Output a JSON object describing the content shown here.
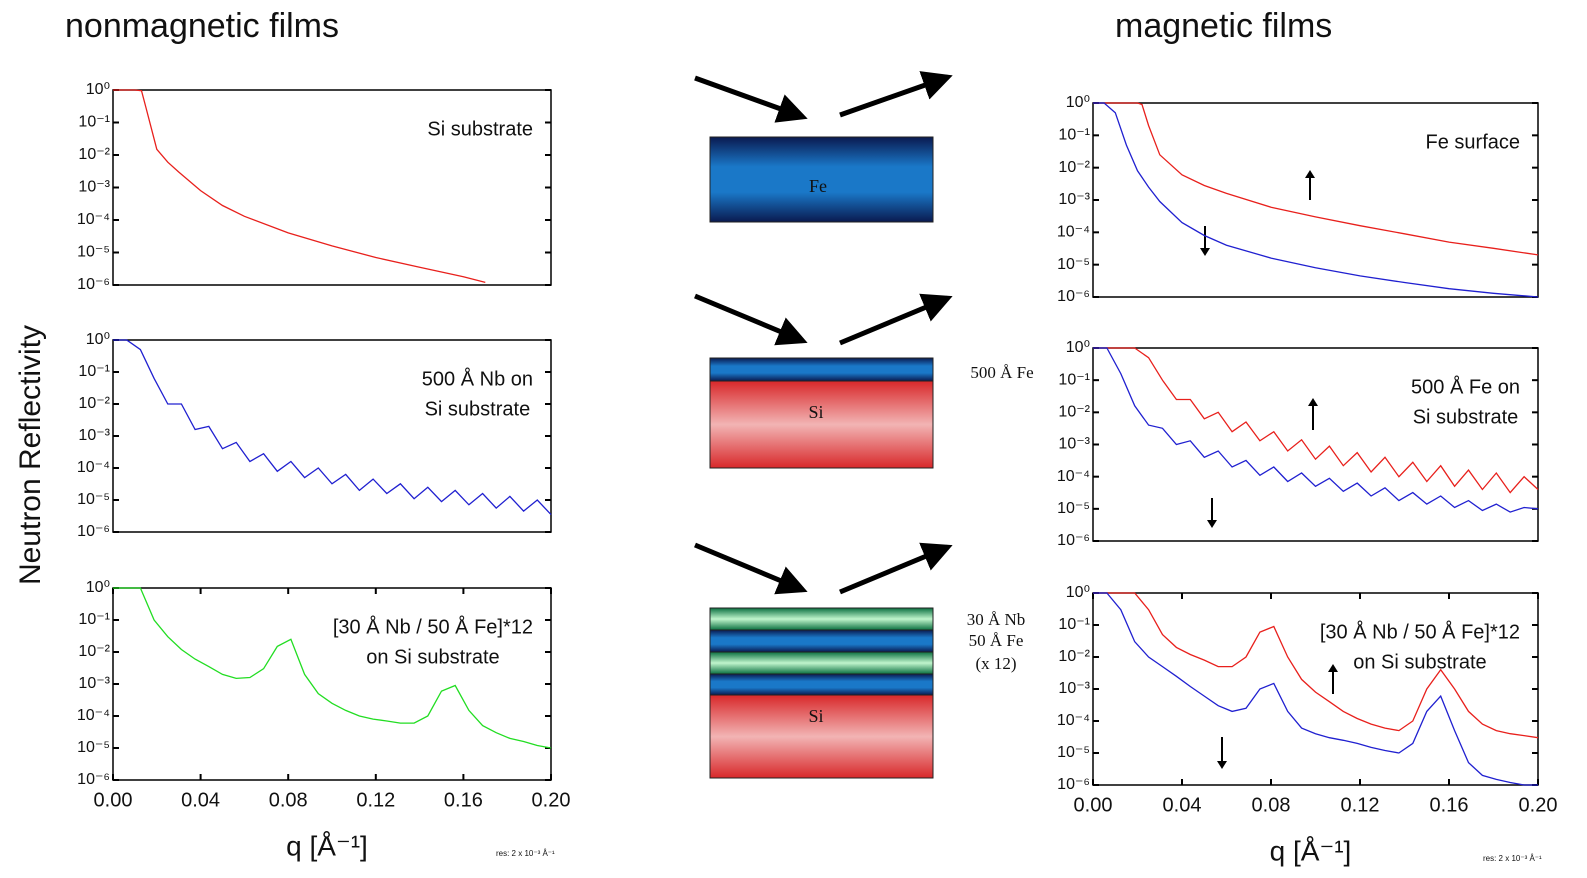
{
  "headings": [
    "nonmagnetic films",
    "magnetic films"
  ],
  "y_axis_label": "Neutron Reflectivity",
  "diagram": {
    "top": "Fe",
    "middle": {
      "film": "500 Å Fe",
      "substrate": "Si"
    },
    "bottom": {
      "film": [
        "30 Å Nb",
        "50 Å Fe",
        "(x 12)"
      ],
      "substrate": "Si"
    }
  },
  "chart_data": [
    {
      "type": "line",
      "log_y": true,
      "annotations": [
        "Si  substrate"
      ],
      "xlim": [
        0,
        0.2
      ],
      "ylim": [
        1e-06,
        1
      ],
      "yticks": [
        {
          "value": 1,
          "label": "10⁰"
        },
        {
          "value": 0.1,
          "label": "10⁻¹"
        },
        {
          "value": 0.01,
          "label": "10⁻²"
        },
        {
          "value": 0.001,
          "label": "10⁻³"
        },
        {
          "value": 0.0001,
          "label": "10⁻⁴"
        },
        {
          "value": 1e-05,
          "label": "10⁻⁵"
        },
        {
          "value": 1e-06,
          "label": "10⁻⁶"
        }
      ],
      "x": [
        0,
        0.005,
        0.01,
        0.013,
        0.015,
        0.02,
        0.025,
        0.03,
        0.04,
        0.05,
        0.06,
        0.08,
        0.1,
        0.12,
        0.14,
        0.16,
        0.17
      ],
      "series": [
        {
          "color": "#e8201c",
          "values": [
            1,
            1,
            1,
            0.95,
            0.3,
            0.015,
            0.006,
            0.003,
            0.0008,
            0.00028,
            0.00013,
            4e-05,
            1.6e-05,
            7e-06,
            3.5e-06,
            1.8e-06,
            1.2e-06
          ]
        }
      ]
    },
    {
      "type": "line",
      "log_y": true,
      "annotations": [
        "500 Å Nb on",
        "Si  substrate"
      ],
      "xlim": [
        0,
        0.2
      ],
      "ylim": [
        1e-06,
        1
      ],
      "yticks": [
        {
          "value": 1,
          "label": "10⁰"
        },
        {
          "value": 0.1,
          "label": "10⁻¹"
        },
        {
          "value": 0.01,
          "label": "10⁻²"
        },
        {
          "value": 0.001,
          "label": "10⁻³"
        },
        {
          "value": 0.0001,
          "label": "10⁻⁴"
        },
        {
          "value": 1e-05,
          "label": "10⁻⁵"
        },
        {
          "value": 1e-06,
          "label": "10⁻⁶"
        }
      ],
      "x": [
        0,
        0.00625,
        0.0125,
        0.01875,
        0.025,
        0.03125,
        0.0375,
        0.04375,
        0.05,
        0.05625,
        0.0625,
        0.06875,
        0.075,
        0.08125,
        0.0875,
        0.09375,
        0.1,
        0.10625,
        0.1125,
        0.11875,
        0.125,
        0.13125,
        0.1375,
        0.14375,
        0.15,
        0.15625,
        0.1625,
        0.16875,
        0.175,
        0.18125,
        0.1875,
        0.19375,
        0.2
      ],
      "series": [
        {
          "color": "#2020d0",
          "values": [
            1,
            1,
            0.5,
            0.063,
            0.01,
            0.01,
            0.0016,
            0.002,
            0.0004,
            0.00063,
            0.00016,
            0.00028,
            7.9e-05,
            0.00016,
            5e-05,
            0.0001,
            3.2e-05,
            6.3e-05,
            2e-05,
            4.5e-05,
            1.6e-05,
            3.2e-05,
            1.1e-05,
            2.5e-05,
            8.9e-06,
            2e-05,
            7.1e-06,
            1.6e-05,
            5.6e-06,
            1.3e-05,
            4.5e-06,
            1e-05,
            3.5e-06
          ]
        }
      ]
    },
    {
      "type": "line",
      "log_y": true,
      "annotations": [
        "[30 Å Nb / 50 Å Fe]*12",
        "on  Si  substrate"
      ],
      "xlabel": "q [Å⁻¹]",
      "note": "res: 2 x 10⁻³ Å⁻¹",
      "xlim": [
        0,
        0.2
      ],
      "ylim": [
        1e-06,
        1
      ],
      "xticks": [
        {
          "value": 0,
          "label": "0.00"
        },
        0.04,
        0.08,
        0.12,
        0.16,
        {
          "value": 0.2,
          "label": "0.20"
        }
      ],
      "yticks": [
        {
          "value": 1,
          "label": "10⁰"
        },
        {
          "value": 0.1,
          "label": "10⁻¹"
        },
        {
          "value": 0.01,
          "label": "10⁻²"
        },
        {
          "value": 0.001,
          "label": "10⁻³"
        },
        {
          "value": 0.0001,
          "label": "10⁻⁴"
        },
        {
          "value": 1e-05,
          "label": "10⁻⁵"
        },
        {
          "value": 1e-06,
          "label": "10⁻⁶"
        }
      ],
      "x": [
        0,
        0.00625,
        0.0125,
        0.01875,
        0.025,
        0.03125,
        0.0375,
        0.04375,
        0.05,
        0.05625,
        0.0625,
        0.06875,
        0.075,
        0.08125,
        0.0875,
        0.09375,
        0.1,
        0.10625,
        0.1125,
        0.11875,
        0.125,
        0.13125,
        0.1375,
        0.14375,
        0.15,
        0.15625,
        0.1625,
        0.16875,
        0.175,
        0.18125,
        0.1875,
        0.19375,
        0.2
      ],
      "series": [
        {
          "color": "#22dd22",
          "values": [
            1,
            1,
            1,
            0.1,
            0.03,
            0.012,
            0.006,
            0.0035,
            0.002,
            0.0015,
            0.0016,
            0.003,
            0.015,
            0.025,
            0.002,
            0.0005,
            0.00025,
            0.00015,
            0.0001,
            8e-05,
            7e-05,
            6e-05,
            6e-05,
            0.0001,
            0.0006,
            0.0009,
            0.00015,
            5e-05,
            3e-05,
            2e-05,
            1.6e-05,
            1.2e-05,
            1e-05
          ]
        }
      ]
    },
    {
      "type": "line",
      "log_y": true,
      "annotations": [
        "Fe surface"
      ],
      "xlim": [
        0,
        0.2
      ],
      "ylim": [
        1e-06,
        1
      ],
      "yticks": [
        {
          "value": 1,
          "label": "10⁰"
        },
        {
          "value": 0.1,
          "label": "10⁻¹"
        },
        {
          "value": 0.01,
          "label": "10⁻²"
        },
        {
          "value": 0.001,
          "label": "10⁻³"
        },
        {
          "value": 0.0001,
          "label": "10⁻⁴"
        },
        {
          "value": 1e-05,
          "label": "10⁻⁵"
        },
        {
          "value": 1e-06,
          "label": "10⁻⁶"
        }
      ],
      "x": [
        0,
        0.005,
        0.01,
        0.015,
        0.02,
        0.022,
        0.025,
        0.03,
        0.04,
        0.05,
        0.06,
        0.08,
        0.1,
        0.12,
        0.14,
        0.16,
        0.18,
        0.2
      ],
      "series": [
        {
          "color": "#e8201c",
          "values": [
            1,
            1,
            1,
            1,
            1,
            0.9,
            0.2,
            0.025,
            0.006,
            0.0028,
            0.0016,
            0.0006,
            0.0003,
            0.00016,
            9e-05,
            5e-05,
            3.2e-05,
            2e-05
          ]
        },
        {
          "color": "#2020d0",
          "values": [
            1,
            1,
            0.5,
            0.05,
            0.008,
            0.005,
            0.0025,
            0.0009,
            0.0002,
            8e-05,
            4e-05,
            1.6e-05,
            8e-06,
            4.5e-06,
            2.8e-06,
            1.8e-06,
            1.3e-06,
            1e-06
          ]
        }
      ]
    },
    {
      "type": "line",
      "log_y": true,
      "annotations": [
        "500 Å Fe on",
        "Si  substrate"
      ],
      "xlim": [
        0,
        0.2
      ],
      "ylim": [
        1e-06,
        1
      ],
      "yticks": [
        {
          "value": 1,
          "label": "10⁰"
        },
        {
          "value": 0.1,
          "label": "10⁻¹"
        },
        {
          "value": 0.01,
          "label": "10⁻²"
        },
        {
          "value": 0.001,
          "label": "10⁻³"
        },
        {
          "value": 0.0001,
          "label": "10⁻⁴"
        },
        {
          "value": 1e-05,
          "label": "10⁻⁵"
        },
        {
          "value": 1e-06,
          "label": "10⁻⁶"
        }
      ],
      "x": [
        0,
        0.00625,
        0.0125,
        0.01875,
        0.025,
        0.03125,
        0.0375,
        0.04375,
        0.05,
        0.05625,
        0.0625,
        0.06875,
        0.075,
        0.08125,
        0.0875,
        0.09375,
        0.1,
        0.10625,
        0.1125,
        0.11875,
        0.125,
        0.13125,
        0.1375,
        0.14375,
        0.15,
        0.15625,
        0.1625,
        0.16875,
        0.175,
        0.18125,
        0.1875,
        0.19375,
        0.2
      ],
      "series": [
        {
          "color": "#e8201c",
          "values": [
            1,
            1,
            1,
            1,
            0.5,
            0.1,
            0.025,
            0.025,
            0.0063,
            0.01,
            0.0025,
            0.005,
            0.0013,
            0.0025,
            0.00063,
            0.0014,
            0.00035,
            0.00089,
            0.00022,
            0.00056,
            0.00014,
            0.0004,
            0.0001,
            0.00028,
            7.1e-05,
            0.00022,
            5e-05,
            0.00016,
            4e-05,
            0.00013,
            3.2e-05,
            0.0001,
            4e-05
          ]
        },
        {
          "color": "#2020d0",
          "values": [
            1,
            1,
            0.16,
            0.016,
            0.004,
            0.0032,
            0.001,
            0.0013,
            0.0004,
            0.00063,
            0.0002,
            0.00032,
            0.00011,
            0.0002,
            7.1e-05,
            0.00013,
            5e-05,
            8.9e-05,
            3.5e-05,
            6.3e-05,
            2.5e-05,
            4.5e-05,
            1.8e-05,
            3.2e-05,
            1.4e-05,
            2.5e-05,
            1.1e-05,
            1.8e-05,
            8.9e-06,
            1.4e-05,
            7.9e-06,
            1.1e-05,
            1e-05
          ]
        }
      ]
    },
    {
      "type": "line",
      "log_y": true,
      "annotations": [
        "[30 Å Nb / 50 Å Fe]*12",
        "on  Si  substrate"
      ],
      "xlabel": "q [Å⁻¹]",
      "note": "res: 2 x 10⁻³ Å⁻¹",
      "xlim": [
        0,
        0.2
      ],
      "ylim": [
        1e-06,
        1
      ],
      "xticks": [
        {
          "value": 0,
          "label": "0.00"
        },
        0.04,
        0.08,
        0.12,
        0.16,
        {
          "value": 0.2,
          "label": "0.20"
        }
      ],
      "yticks": [
        {
          "value": 1,
          "label": "10⁰"
        },
        {
          "value": 0.1,
          "label": "10⁻¹"
        },
        {
          "value": 0.01,
          "label": "10⁻²"
        },
        {
          "value": 0.001,
          "label": "10⁻³"
        },
        {
          "value": 0.0001,
          "label": "10⁻⁴"
        },
        {
          "value": 1e-05,
          "label": "10⁻⁵"
        },
        {
          "value": 1e-06,
          "label": "10⁻⁶"
        }
      ],
      "x": [
        0,
        0.00625,
        0.0125,
        0.01875,
        0.025,
        0.03125,
        0.0375,
        0.04375,
        0.05,
        0.05625,
        0.0625,
        0.06875,
        0.075,
        0.08125,
        0.0875,
        0.09375,
        0.1,
        0.10625,
        0.1125,
        0.11875,
        0.125,
        0.13125,
        0.1375,
        0.14375,
        0.15,
        0.15625,
        0.1625,
        0.16875,
        0.175,
        0.18125,
        0.1875,
        0.19375,
        0.2
      ],
      "series": [
        {
          "color": "#e8201c",
          "values": [
            1,
            1,
            1,
            1,
            0.3,
            0.05,
            0.02,
            0.012,
            0.008,
            0.005,
            0.005,
            0.01,
            0.06,
            0.09,
            0.01,
            0.002,
            0.0008,
            0.0004,
            0.0002,
            0.00012,
            8e-05,
            6e-05,
            5e-05,
            0.0001,
            0.001,
            0.004,
            0.001,
            0.0002,
            8e-05,
            5e-05,
            4e-05,
            3.5e-05,
            3e-05
          ]
        },
        {
          "color": "#2020d0",
          "values": [
            1,
            1,
            0.3,
            0.03,
            0.01,
            0.005,
            0.0025,
            0.0012,
            0.0006,
            0.0003,
            0.0002,
            0.00025,
            0.001,
            0.0015,
            0.0002,
            6e-05,
            4e-05,
            3e-05,
            2.5e-05,
            2e-05,
            1.5e-05,
            1.2e-05,
            1e-05,
            2e-05,
            0.0002,
            0.0006,
            5e-05,
            5e-06,
            2e-06,
            1.5e-06,
            1.2e-06,
            1e-06,
            1e-06
          ]
        }
      ]
    }
  ]
}
